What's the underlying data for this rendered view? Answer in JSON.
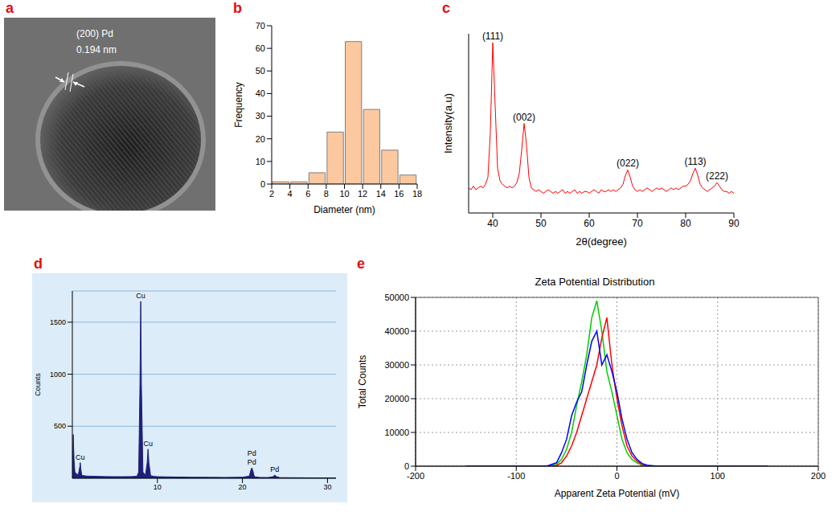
{
  "chart_data": [
    {
      "type": "image",
      "panel": "a",
      "annotations": [
        {
          "text": "(200) Pd"
        },
        {
          "text": "0.194 nm"
        }
      ]
    },
    {
      "type": "histogram",
      "panel": "b",
      "bins": [
        2,
        4,
        6,
        8,
        10,
        12,
        14,
        16,
        18
      ],
      "values": [
        1,
        1,
        5,
        23,
        63,
        33,
        15,
        4
      ],
      "color": "#fbc8a0",
      "x_label": "Diameter (nm)",
      "y_label": "Frequency",
      "xlim": [
        2,
        18
      ],
      "xticks": [
        2,
        4,
        6,
        8,
        10,
        12,
        14,
        16,
        18
      ],
      "ylim": [
        0,
        70
      ],
      "yticks": [
        0,
        10,
        20,
        30,
        40,
        50,
        60,
        70
      ]
    },
    {
      "type": "line",
      "panel": "c",
      "x": [
        35,
        35.5,
        36,
        36.5,
        37,
        37.5,
        38,
        38.5,
        39,
        39.5,
        40,
        40.5,
        41,
        41.5,
        42,
        42.5,
        43,
        43.5,
        44,
        44.5,
        45,
        45.5,
        46,
        46.5,
        47,
        47.5,
        48,
        48.5,
        49,
        49.5,
        50,
        50.5,
        51,
        51.5,
        52,
        52.5,
        53,
        53.5,
        54,
        54.5,
        55,
        55.5,
        56,
        56.5,
        57,
        57.5,
        58,
        58.5,
        59,
        59.5,
        60,
        60.5,
        61,
        61.5,
        62,
        62.5,
        63,
        63.5,
        64,
        64.5,
        65,
        65.5,
        66,
        66.5,
        67,
        67.5,
        68,
        68.5,
        69,
        69.5,
        70,
        70.5,
        71,
        71.5,
        72,
        72.5,
        73,
        73.5,
        74,
        74.5,
        75,
        75.5,
        76,
        76.5,
        77,
        77.5,
        78,
        78.5,
        79,
        79.5,
        80,
        80.5,
        81,
        81.5,
        82,
        82.5,
        83,
        83.5,
        84,
        84.5,
        85,
        85.5,
        86,
        86.5,
        87,
        87.5,
        88,
        88.5,
        89,
        89.5,
        90
      ],
      "values": [
        14,
        13,
        15,
        13,
        14,
        15,
        14,
        16,
        20,
        45,
        95,
        60,
        25,
        18,
        16,
        15,
        14,
        15,
        14,
        15,
        17,
        22,
        35,
        50,
        38,
        20,
        14,
        13,
        12,
        13,
        12,
        11,
        12,
        13,
        12,
        11,
        12,
        11,
        12,
        13,
        11,
        12,
        11,
        12,
        13,
        11,
        12,
        11,
        12,
        12,
        11,
        12,
        13,
        12,
        11,
        13,
        12,
        12,
        13,
        12,
        13,
        12,
        13,
        14,
        16,
        21,
        24,
        20,
        15,
        13,
        12,
        13,
        12,
        13,
        14,
        13,
        12,
        13,
        14,
        13,
        14,
        13,
        12,
        13,
        14,
        13,
        14,
        13,
        14,
        15,
        15,
        16,
        18,
        22,
        25,
        21,
        16,
        14,
        13,
        12,
        13,
        14,
        15,
        17,
        15,
        13,
        12,
        12,
        11,
        12,
        11
      ],
      "color": "#ff0000",
      "x_label": "2θ(degree)",
      "y_label": "Intensity(a.u)",
      "xlim": [
        35,
        90
      ],
      "xticks": [
        40,
        50,
        60,
        70,
        80,
        90
      ],
      "ylim": [
        0,
        100
      ],
      "tick_labels": "x",
      "annotations": [
        {
          "text": "(111)",
          "x": 40
        },
        {
          "text": "(002)",
          "x": 46.5
        },
        {
          "text": "(022)",
          "x": 68
        },
        {
          "text": "(113)",
          "x": 82
        },
        {
          "text": "(222)",
          "x": 86.5
        }
      ]
    },
    {
      "type": "area",
      "panel": "d",
      "x": [
        0,
        0.1,
        0.2,
        0.3,
        0.5,
        0.7,
        0.9,
        0.93,
        1.0,
        1.1,
        1.3,
        1.6,
        2,
        3,
        4,
        5,
        6,
        7,
        7.6,
        7.8,
        7.95,
        8.04,
        8.12,
        8.3,
        8.6,
        8.8,
        8.9,
        9.0,
        9.2,
        9.6,
        10,
        12,
        14,
        16,
        18,
        20,
        20.8,
        21.0,
        21.1,
        21.2,
        21.4,
        22,
        23,
        23.6,
        23.8,
        24.0,
        24.4,
        26,
        28,
        30,
        31
      ],
      "values": [
        0,
        420,
        180,
        60,
        40,
        35,
        120,
        150,
        90,
        30,
        25,
        22,
        20,
        18,
        16,
        15,
        15,
        16,
        20,
        60,
        900,
        1700,
        900,
        60,
        30,
        150,
        280,
        150,
        25,
        18,
        15,
        12,
        10,
        9,
        8,
        10,
        20,
        80,
        100,
        80,
        15,
        8,
        7,
        15,
        30,
        15,
        6,
        5,
        4,
        3,
        3
      ],
      "color": "#1f1f7a",
      "y_label": "Counts",
      "xlim": [
        0,
        31
      ],
      "xticks": [
        10,
        20,
        30
      ],
      "ylim": [
        0,
        1800
      ],
      "yticks": [
        500,
        1000,
        1500
      ],
      "grid": true,
      "annotations": [
        {
          "text": "Cu",
          "x": 0.93
        },
        {
          "text": "Cu",
          "x": 8.04
        },
        {
          "text": "Cu",
          "x": 8.9
        },
        {
          "text": "Pd",
          "x": 21.1
        },
        {
          "text": "Pd",
          "x": 21.1
        },
        {
          "text": "Pd",
          "x": 23.8
        }
      ]
    },
    {
      "type": "line",
      "panel": "e",
      "title": "Zeta Potential Distribution",
      "x": [
        -150,
        -100,
        -70,
        -60,
        -55,
        -50,
        -45,
        -40,
        -35,
        -30,
        -25,
        -20,
        -15,
        -10,
        -5,
        0,
        5,
        10,
        15,
        20,
        25,
        30,
        40,
        50,
        100,
        150
      ],
      "series": [
        {
          "color": "#00cc00",
          "values": [
            0,
            0,
            0,
            500,
            2000,
            5000,
            10000,
            18000,
            25000,
            33000,
            44000,
            49000,
            40000,
            28000,
            22000,
            15000,
            8000,
            4000,
            2000,
            1000,
            300,
            0,
            0,
            0,
            0,
            0
          ]
        },
        {
          "color": "#ff0000",
          "values": [
            0,
            0,
            0,
            200,
            1000,
            3000,
            6000,
            10000,
            15000,
            20000,
            25000,
            30000,
            38000,
            44000,
            30000,
            20000,
            12000,
            6000,
            3000,
            1500,
            500,
            0,
            0,
            0,
            0,
            0
          ]
        },
        {
          "color": "#0000ff",
          "values": [
            0,
            0,
            0,
            1000,
            4000,
            8000,
            15000,
            19000,
            22000,
            30000,
            37000,
            40000,
            30000,
            33000,
            28000,
            22000,
            14000,
            8000,
            4000,
            2000,
            800,
            300,
            0,
            0,
            0,
            0
          ]
        }
      ],
      "x_label": "Apparent Zeta Potential (mV)",
      "y_label": "Total Counts",
      "xlim": [
        -200,
        200
      ],
      "xticks": [
        -200,
        -100,
        0,
        100,
        200
      ],
      "ylim": [
        0,
        50000
      ],
      "yticks": [
        0,
        10000,
        20000,
        30000,
        40000,
        50000
      ],
      "grid": true
    }
  ]
}
